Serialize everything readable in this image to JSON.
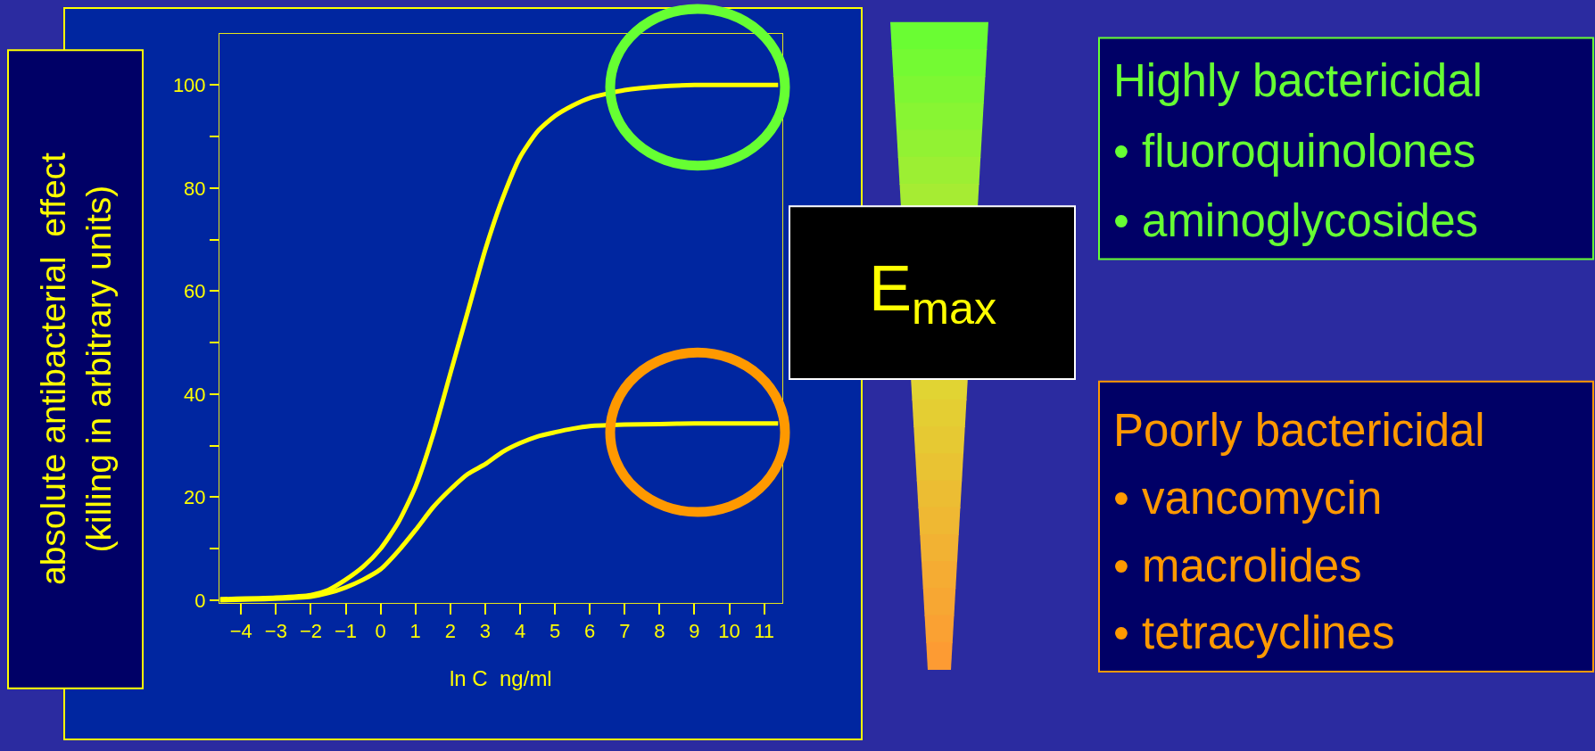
{
  "chart_data": {
    "type": "line",
    "xlabel": "ln C  ng/ml",
    "ylabel": "absolute antibacterial  effect\n(killing in arbitrary units)",
    "x": [
      -4.6,
      -3,
      -2,
      -1.5,
      -1,
      -0.5,
      0,
      0.5,
      1,
      1.5,
      2,
      2.5,
      3,
      3.5,
      4,
      4.5,
      5,
      5.5,
      6,
      7,
      8,
      9,
      10,
      11.4
    ],
    "series": [
      {
        "color": "#ffff00",
        "values": [
          0.2,
          0.5,
          1,
          2,
          4,
          6.5,
          10,
          15,
          22,
          32,
          44,
          56,
          68,
          78,
          86,
          91,
          94,
          96,
          97.5,
          99,
          99.7,
          100,
          100,
          100
        ]
      },
      {
        "color": "#ffff00",
        "values": [
          0,
          0.3,
          0.7,
          1.4,
          2.5,
          4,
          6,
          9.5,
          13.6,
          18,
          21.5,
          24.5,
          26.4,
          28.8,
          30.5,
          31.8,
          32.6,
          33.3,
          33.8,
          34.1,
          34.2,
          34.3,
          34.3,
          34.3
        ]
      }
    ],
    "xlim": [
      -4.62,
      11.52
    ],
    "ylim": [
      -0.5,
      110
    ],
    "xticks": [
      -4,
      -3,
      -2,
      -1,
      0,
      1,
      2,
      3,
      4,
      5,
      6,
      7,
      8,
      9,
      10,
      11
    ],
    "yticks": [
      0,
      {
        "value": 10,
        "label": null
      },
      20,
      {
        "value": 30,
        "label": null
      },
      40,
      {
        "value": 50,
        "label": null
      },
      60,
      {
        "value": 70,
        "label": null
      },
      80,
      {
        "value": 90,
        "label": null
      },
      100
    ],
    "grid": false,
    "marker": "none",
    "line_style": "solid",
    "annotations": [
      "E$_{max}$",
      "Highly bactericidal",
      "• fluoroquinolones",
      "• aminoglycosides",
      "Poorly bactericidal",
      "• vancomycin",
      "• macrolides",
      "• tetracyclines"
    ]
  }
}
